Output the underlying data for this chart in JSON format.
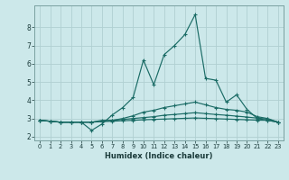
{
  "xlabel": "Humidex (Indice chaleur)",
  "background_color": "#cce8ea",
  "grid_color": "#b0d0d2",
  "line_color": "#1a6b65",
  "xlim": [
    -0.5,
    23.5
  ],
  "ylim": [
    1.8,
    9.2
  ],
  "yticks": [
    2,
    3,
    4,
    5,
    6,
    7,
    8
  ],
  "xticks": [
    0,
    1,
    2,
    3,
    4,
    5,
    6,
    7,
    8,
    9,
    10,
    11,
    12,
    13,
    14,
    15,
    16,
    17,
    18,
    19,
    20,
    21,
    22,
    23
  ],
  "lines": [
    {
      "x": [
        0,
        1,
        2,
        3,
        4,
        5,
        6,
        7,
        8,
        9,
        10,
        11,
        12,
        13,
        14,
        15,
        16,
        17,
        18,
        19,
        20,
        21,
        22,
        23
      ],
      "y": [
        2.9,
        2.85,
        2.8,
        2.8,
        2.8,
        2.35,
        2.7,
        3.2,
        3.6,
        4.15,
        6.2,
        4.85,
        6.5,
        7.0,
        7.6,
        8.7,
        5.2,
        5.1,
        3.9,
        4.3,
        3.5,
        3.0,
        2.9,
        2.8
      ]
    },
    {
      "x": [
        0,
        1,
        2,
        3,
        4,
        5,
        6,
        7,
        8,
        9,
        10,
        11,
        12,
        13,
        14,
        15,
        16,
        17,
        18,
        19,
        20,
        21,
        22,
        23
      ],
      "y": [
        2.9,
        2.85,
        2.8,
        2.8,
        2.8,
        2.8,
        2.9,
        2.9,
        3.0,
        3.15,
        3.35,
        3.45,
        3.6,
        3.7,
        3.8,
        3.9,
        3.75,
        3.6,
        3.5,
        3.45,
        3.35,
        3.1,
        3.0,
        2.8
      ]
    },
    {
      "x": [
        0,
        1,
        2,
        3,
        4,
        5,
        6,
        7,
        8,
        9,
        10,
        11,
        12,
        13,
        14,
        15,
        16,
        17,
        18,
        19,
        20,
        21,
        22,
        23
      ],
      "y": [
        2.9,
        2.85,
        2.8,
        2.8,
        2.8,
        2.8,
        2.85,
        2.9,
        2.95,
        3.0,
        3.05,
        3.1,
        3.18,
        3.22,
        3.27,
        3.32,
        3.27,
        3.22,
        3.18,
        3.13,
        3.08,
        3.02,
        2.97,
        2.8
      ]
    },
    {
      "x": [
        0,
        1,
        2,
        3,
        4,
        5,
        6,
        7,
        8,
        9,
        10,
        11,
        12,
        13,
        14,
        15,
        16,
        17,
        18,
        19,
        20,
        21,
        22,
        23
      ],
      "y": [
        2.9,
        2.85,
        2.8,
        2.8,
        2.8,
        2.8,
        2.83,
        2.85,
        2.88,
        2.9,
        2.93,
        2.95,
        2.97,
        2.99,
        3.01,
        3.03,
        3.01,
        2.99,
        2.97,
        2.95,
        2.93,
        2.91,
        2.9,
        2.8
      ]
    }
  ]
}
